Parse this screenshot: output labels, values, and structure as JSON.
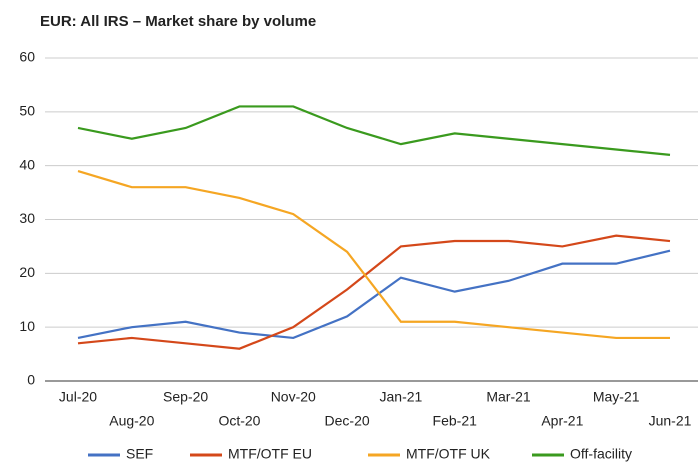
{
  "chart_data": {
    "type": "line",
    "title": "EUR: All IRS – Market share by volume",
    "categories": [
      "Jul-20",
      "Aug-20",
      "Sep-20",
      "Oct-20",
      "Nov-20",
      "Dec-20",
      "Jan-21",
      "Feb-21",
      "Mar-21",
      "Apr-21",
      "May-21",
      "Jun-21"
    ],
    "series": [
      {
        "name": "SEF",
        "color": "#4472c4",
        "values": [
          8,
          10,
          11,
          9,
          8,
          12,
          19.2,
          16.6,
          18.6,
          21.8,
          21.8,
          24.2
        ]
      },
      {
        "name": "MTF/OTF EU",
        "color": "#d4481a",
        "values": [
          7,
          8,
          7,
          6,
          10,
          17,
          25,
          26,
          26,
          25,
          27,
          26
        ]
      },
      {
        "name": "MTF/OTF UK",
        "color": "#f5a623",
        "values": [
          39,
          36,
          36,
          34,
          31,
          24,
          11,
          11,
          10,
          9,
          8,
          8
        ]
      },
      {
        "name": "Off-facility",
        "color": "#3a9a1e",
        "values": [
          47,
          45,
          47,
          51,
          51,
          47,
          44,
          46,
          45,
          44,
          43,
          42
        ]
      }
    ],
    "ylim": [
      0,
      60
    ],
    "yticks": [
      0,
      10,
      20,
      30,
      40,
      50,
      60
    ],
    "grid": true
  }
}
